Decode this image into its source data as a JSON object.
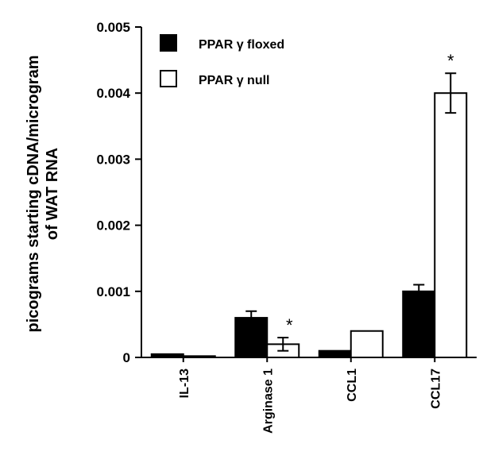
{
  "chart_data": {
    "type": "bar",
    "ylabel_lines": [
      "picograms starting cDNA/microgram",
      "of WAT RNA"
    ],
    "ylim": [
      0,
      0.005
    ],
    "yticks": [
      "0",
      "0.001",
      "0.002",
      "0.003",
      "0.004",
      "0.005"
    ],
    "categories": [
      "IL-13",
      "Arginase 1",
      "CCL1",
      "CCL17"
    ],
    "series": [
      {
        "name": "PPAR γ floxed",
        "color": "#000000",
        "values": [
          5e-05,
          0.0006,
          0.0001,
          0.001
        ],
        "errors": [
          0,
          0.0001,
          0,
          0.0001
        ],
        "significance": [
          "",
          "",
          "",
          ""
        ]
      },
      {
        "name": "PPAR γ null",
        "color": "#ffffff",
        "values": [
          2e-05,
          0.0002,
          0.0004,
          0.004
        ],
        "errors": [
          0,
          0.0001,
          0,
          0.0003
        ],
        "significance": [
          "",
          "*",
          "",
          "*"
        ]
      }
    ],
    "legend_position": "top-left",
    "grid": false
  }
}
